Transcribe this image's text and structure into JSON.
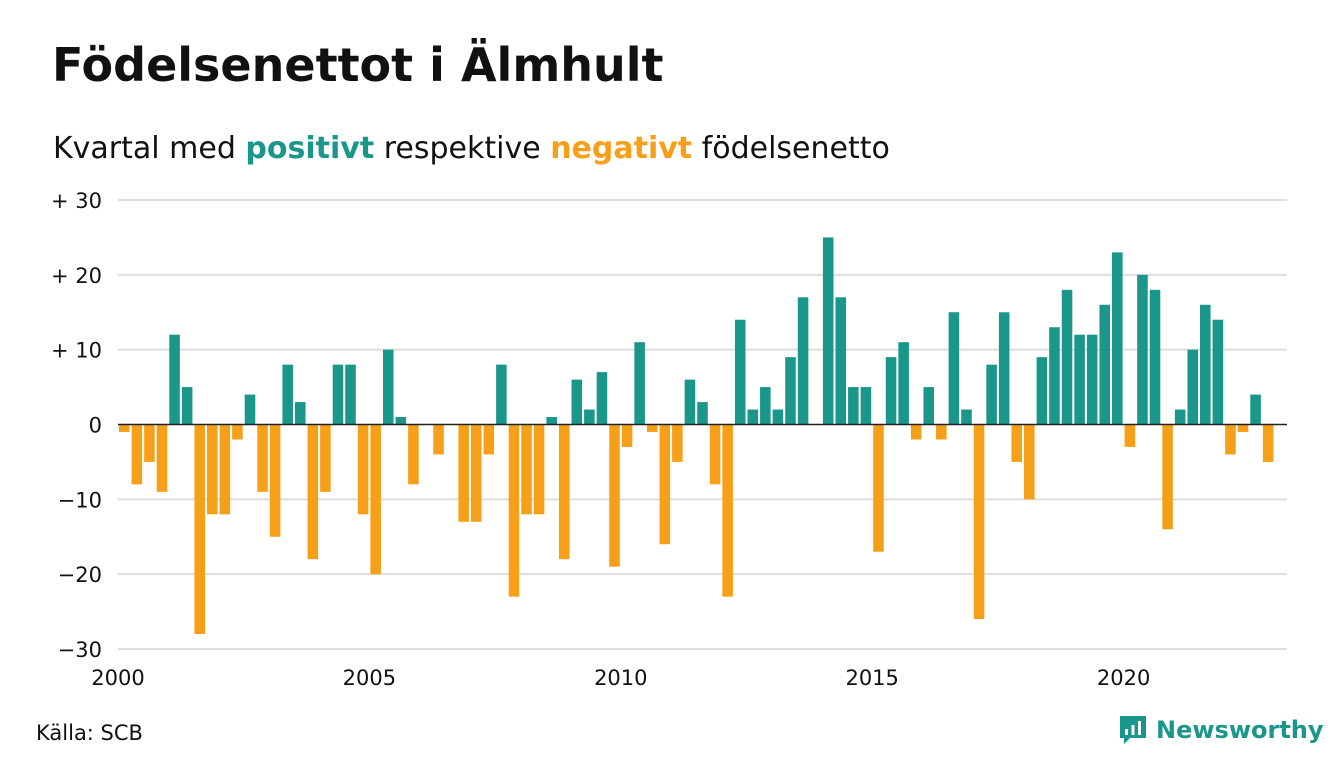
{
  "title": "Födelsenettot i Älmhult",
  "subtitle": {
    "pre": "Kvartal med ",
    "positive": "positivt",
    "mid": " respektive ",
    "negative": "negativt",
    "post": " födelsenetto"
  },
  "source": "Källa: SCB",
  "brand": {
    "name": "Newsworthy",
    "icon": "newsworthy-logo-icon"
  },
  "colors": {
    "positive": "#1b968a",
    "negative": "#f6a01a",
    "grid": "#dddddd",
    "axis": "#222222"
  },
  "chart_data": {
    "type": "bar",
    "x_start": 2000,
    "x_step": 0.25,
    "xlim": [
      2000,
      2023.25
    ],
    "ylim": [
      -30,
      30
    ],
    "grid": true,
    "y_ticks": [
      {
        "value": 30,
        "label": "+ 30"
      },
      {
        "value": 20,
        "label": "+ 20"
      },
      {
        "value": 10,
        "label": "+ 10"
      },
      {
        "value": 0,
        "label": "0"
      },
      {
        "value": -10,
        "label": "−10"
      },
      {
        "value": -20,
        "label": "−20"
      },
      {
        "value": -30,
        "label": "−30"
      }
    ],
    "x_ticks": [
      {
        "value": 2000,
        "label": "2000"
      },
      {
        "value": 2005,
        "label": "2005"
      },
      {
        "value": 2010,
        "label": "2010"
      },
      {
        "value": 2015,
        "label": "2015"
      },
      {
        "value": 2020,
        "label": "2020"
      }
    ],
    "values": [
      -1,
      -8,
      -5,
      -9,
      12,
      5,
      -28,
      -12,
      -12,
      -2,
      4,
      -9,
      -15,
      8,
      3,
      -18,
      -9,
      8,
      8,
      -12,
      -20,
      10,
      1,
      -8,
      0,
      -4,
      0,
      -13,
      -13,
      -4,
      8,
      -23,
      -12,
      -12,
      1,
      -18,
      6,
      2,
      7,
      -19,
      -3,
      11,
      -1,
      -16,
      -5,
      6,
      3,
      -8,
      -23,
      14,
      2,
      5,
      2,
      9,
      17,
      0,
      25,
      17,
      5,
      5,
      -17,
      9,
      11,
      -2,
      5,
      -2,
      15,
      2,
      -26,
      8,
      15,
      -5,
      -10,
      9,
      13,
      18,
      12,
      12,
      16,
      23,
      -3,
      20,
      18,
      -14,
      2,
      10,
      16,
      14,
      -4,
      -1,
      4,
      -5
    ]
  }
}
